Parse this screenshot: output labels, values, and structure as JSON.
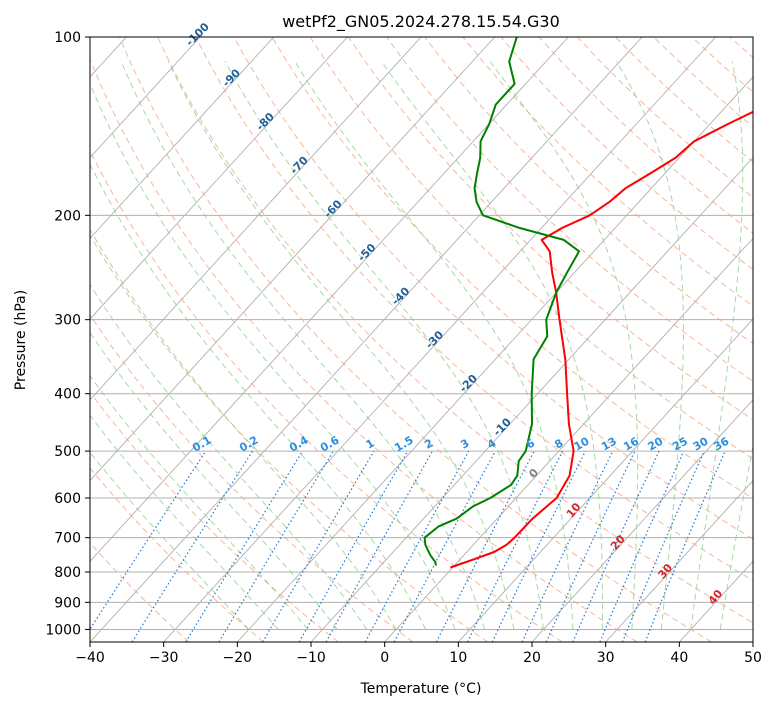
{
  "chart_data": {
    "type": "line",
    "subtype": "skew-t log-p diagram",
    "title": "wetPf2_GN05.2024.278.15.54.G30",
    "xlabel": "Temperature (°C)",
    "ylabel": "Pressure (hPa)",
    "xlim": [
      -40,
      50
    ],
    "ylim": [
      1050,
      100
    ],
    "y_scale": "log",
    "grid": true,
    "x_ticks": [
      -40,
      -30,
      -20,
      -10,
      0,
      10,
      20,
      30,
      40,
      50
    ],
    "y_ticks": [
      100,
      200,
      300,
      400,
      500,
      600,
      700,
      800,
      900,
      1000
    ],
    "series": [
      {
        "color": "#ff0000",
        "pressure_hPa": [
          786,
          760,
          740,
          720,
          700,
          650,
          600,
          550,
          500,
          450,
          400,
          350,
          300,
          270,
          250,
          230,
          220,
          210,
          200,
          190,
          180,
          170,
          160,
          150,
          140,
          130,
          120,
          110,
          100
        ],
        "temperature_C": [
          -0.3,
          2.0,
          3.7,
          4.5,
          4.7,
          4.8,
          5.5,
          4.5,
          2.0,
          -2.0,
          -6.0,
          -10.5,
          -16.2,
          -20.0,
          -23.0,
          -26.0,
          -28.5,
          -27.2,
          -25.0,
          -24.0,
          -23.5,
          -22.0,
          -20.5,
          -20.0,
          -17.5,
          -14.5,
          -12.0,
          -10.0,
          -9.0
        ]
      },
      {
        "color": "#008000",
        "pressure_hPa": [
          780,
          770,
          750,
          720,
          700,
          670,
          650,
          620,
          600,
          570,
          550,
          520,
          500,
          450,
          400,
          350,
          320,
          300,
          270,
          250,
          230,
          220,
          210,
          200,
          190,
          180,
          170,
          160,
          150,
          140,
          130,
          120,
          110,
          100
        ],
        "temperature_C": [
          -2.5,
          -3.0,
          -4.5,
          -6.5,
          -7.5,
          -7.0,
          -5.5,
          -4.8,
          -3.5,
          -2.3,
          -2.6,
          -4.2,
          -4.5,
          -7.0,
          -10.8,
          -14.8,
          -15.8,
          -18.0,
          -20.0,
          -21.0,
          -22.0,
          -25.5,
          -33.0,
          -39.5,
          -42.0,
          -44.0,
          -45.5,
          -47.0,
          -49.0,
          -50.0,
          -51.5,
          -51.5,
          -55.0,
          -57.0
        ]
      }
    ],
    "isotherm_labels": [
      "-100",
      "-90",
      "-80",
      "-70",
      "-60",
      "-50",
      "-40",
      "-30",
      "-20",
      "-10"
    ],
    "mixing_ratio_labels": [
      "0.1",
      "0.2",
      "0.4",
      "0.6",
      "1",
      "1.5",
      "2",
      "3",
      "4",
      "6",
      "8",
      "10",
      "13",
      "16",
      "20",
      "25",
      "30",
      "36"
    ],
    "dry_adiabat_labels": [
      "0",
      "10",
      "20",
      "30",
      "40"
    ],
    "colors": {
      "isotherms": "#b0b0b0",
      "dry_adiabats": "#f4a582",
      "moist_adiabats": "#8fcf8f",
      "mixing_ratio": "#1f78d1",
      "isotherm_label": "#1f5f9a",
      "adiabat_label": "#d62728",
      "zero_label": "#808080"
    }
  }
}
